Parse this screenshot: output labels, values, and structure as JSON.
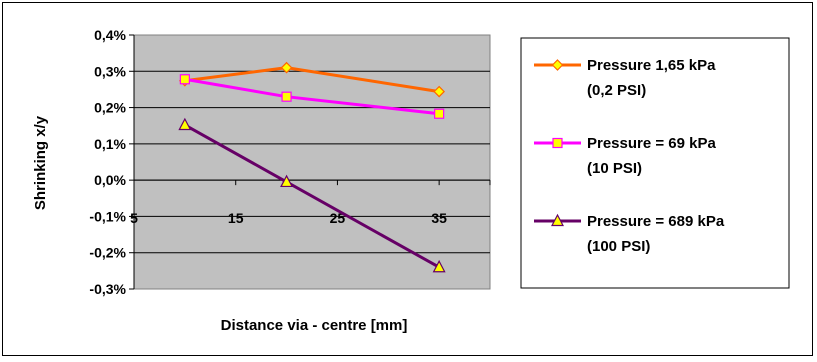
{
  "chart_data": {
    "type": "line",
    "title": "",
    "xlabel": "Distance via - centre [mm]",
    "ylabel": "Shrinking x/y",
    "xlim": [
      5,
      40
    ],
    "ylim": [
      -0.3,
      0.4
    ],
    "x_ticks": [
      "5",
      "15",
      "25",
      "35"
    ],
    "y_ticks": [
      "0,4%",
      "0,3%",
      "0,2%",
      "0,1%",
      "0,0%",
      "-0,1%",
      "-0,2%",
      "-0,3%"
    ],
    "grid": "horizontal",
    "legend_position": "right",
    "colors": {
      "plot_background": "#c0c0c0",
      "series_1": "#ff6600",
      "series_2": "#ff00ff",
      "series_3": "#660066",
      "marker_fill": "#ffff00"
    },
    "series": [
      {
        "name": "Pressure 1,65 kPa (0,2 PSI)",
        "legend_lines": [
          "Pressure 1,65 kPa",
          "(0,2 PSI)"
        ],
        "marker": "diamond",
        "x": [
          10,
          20,
          35
        ],
        "values": [
          0.274,
          0.31,
          0.244
        ]
      },
      {
        "name": "Pressure = 69 kPa (10 PSI)",
        "legend_lines": [
          "Pressure = 69 kPa",
          "(10 PSI)"
        ],
        "marker": "square",
        "x": [
          10,
          20,
          35
        ],
        "values": [
          0.278,
          0.23,
          0.183
        ]
      },
      {
        "name": "Pressure = 689 kPa (100 PSI)",
        "legend_lines": [
          "Pressure = 689 kPa",
          "(100 PSI)"
        ],
        "marker": "triangle",
        "x": [
          10,
          20,
          35
        ],
        "values": [
          0.152,
          -0.005,
          -0.24
        ]
      }
    ]
  }
}
